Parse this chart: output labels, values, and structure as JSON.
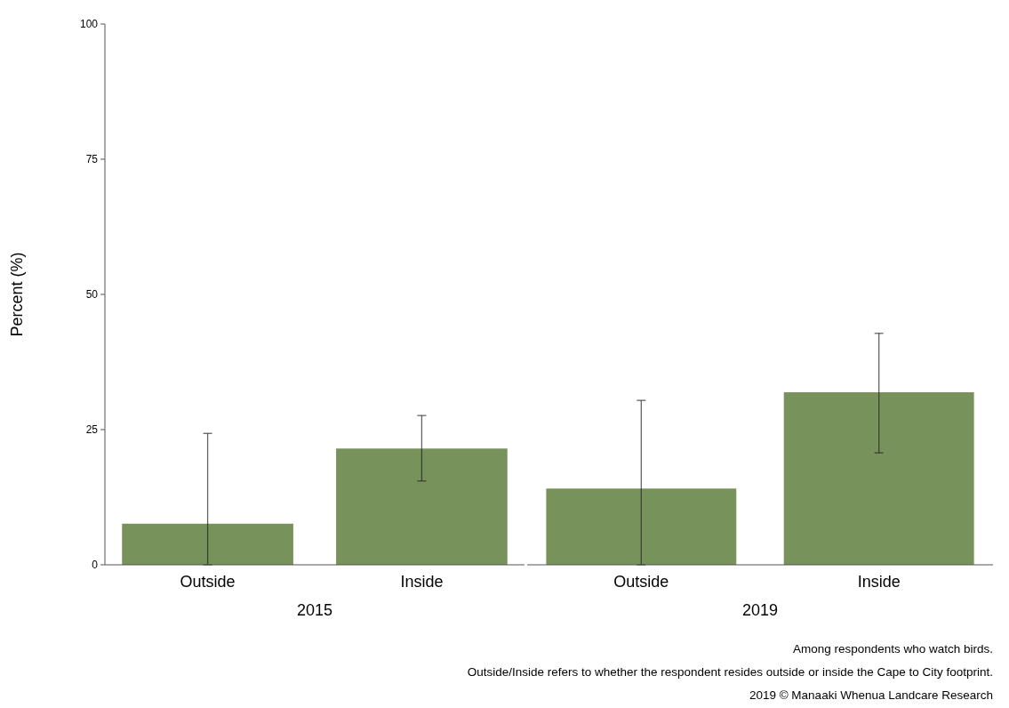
{
  "chart_data": [
    {
      "type": "bar",
      "categories": [
        "Outside",
        "Inside"
      ],
      "xlabel": "2015",
      "ylabel": "Percent (%)",
      "values": [
        7.6,
        21.5
      ],
      "errors": [
        [
          0,
          24.3
        ],
        [
          15.5,
          27.6
        ]
      ],
      "color": "#77925a",
      "ylim": [
        0,
        100
      ],
      "yticks": [
        0,
        25,
        50,
        75,
        100
      ],
      "grid": false
    },
    {
      "type": "bar",
      "categories": [
        "Outside",
        "Inside"
      ],
      "xlabel": "2019",
      "values": [
        14.1,
        31.9
      ],
      "errors": [
        [
          0,
          30.4
        ],
        [
          20.7,
          42.8
        ]
      ],
      "color": "#77925a",
      "ylim": [
        0,
        100
      ],
      "grid": false,
      "tick_labels": "x",
      "annotations": [
        "Among respondents who watch birds.",
        "Outside/Inside refers to whether the respondent resides outside or inside the Cape to City footprint.",
        "2019 © Manaaki Whenua Landcare Research"
      ]
    }
  ]
}
